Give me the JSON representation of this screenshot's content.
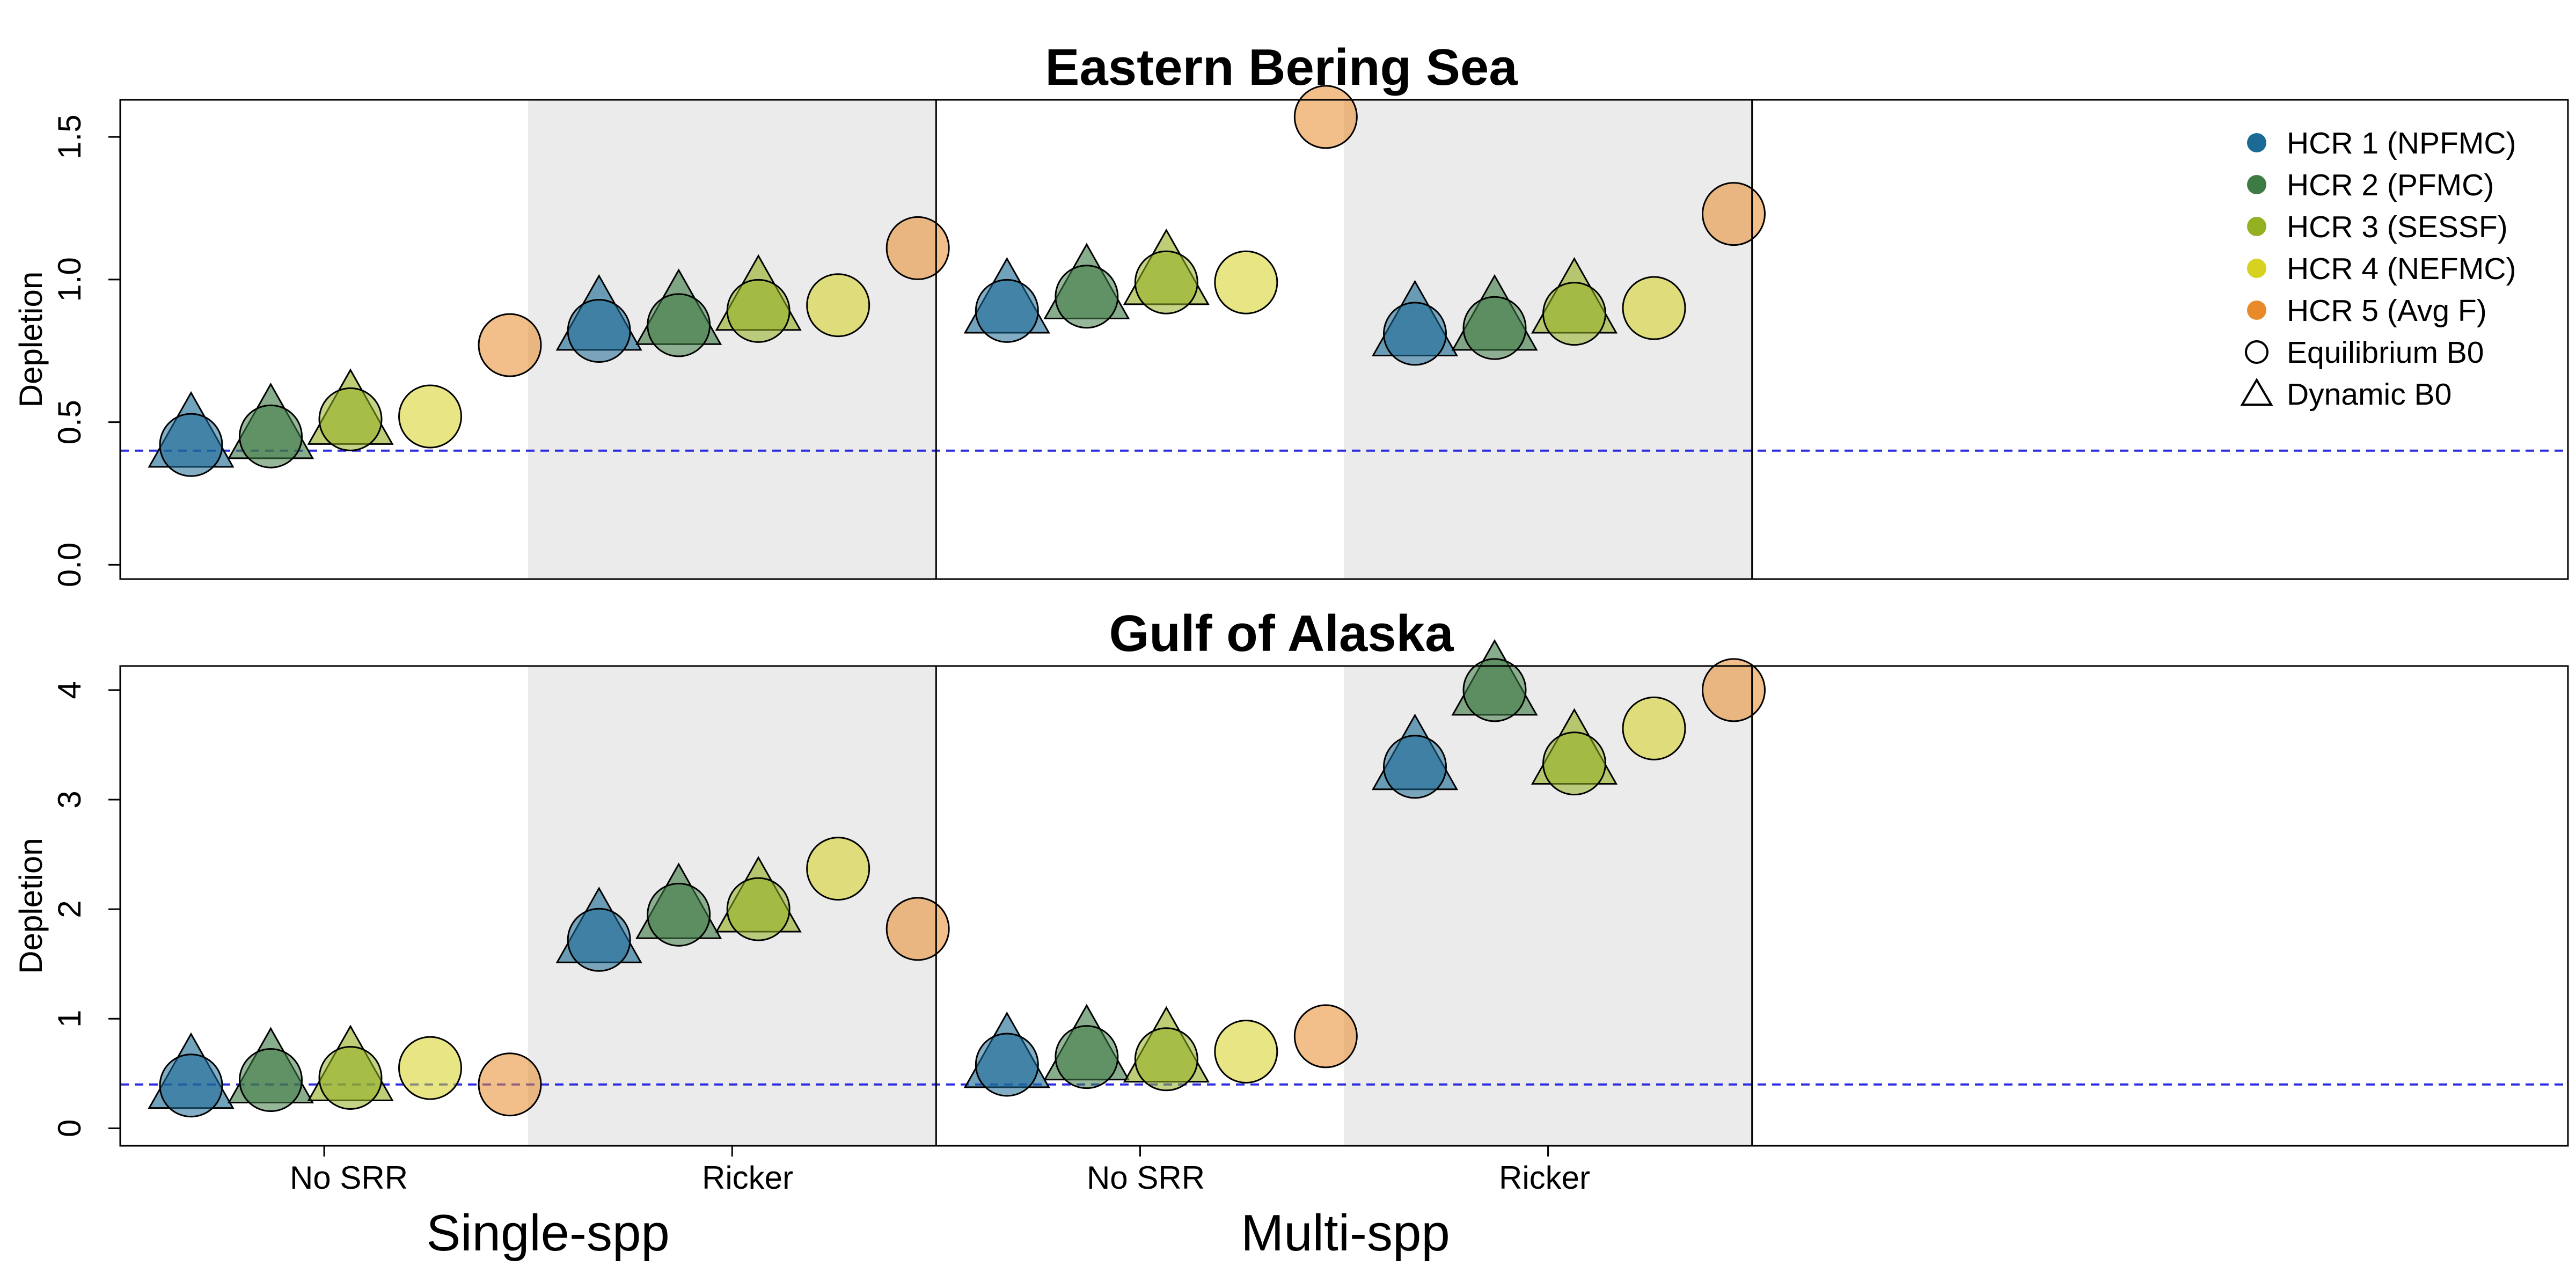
{
  "colors": {
    "hcr": [
      "#1B6A95",
      "#3F7B45",
      "#94B023",
      "#D6D21F",
      "#E88A2A"
    ],
    "reference_line": "#2B2BE0",
    "shade": "#EBEBEB"
  },
  "legend": {
    "entries": [
      {
        "label": "HCR 1 (NPFMC)",
        "marker": "filled-circle",
        "color_index": 0
      },
      {
        "label": "HCR 2 (PFMC)",
        "marker": "filled-circle",
        "color_index": 1
      },
      {
        "label": "HCR 3 (SESSF)",
        "marker": "filled-circle",
        "color_index": 2
      },
      {
        "label": "HCR 4 (NEFMC)",
        "marker": "filled-circle",
        "color_index": 3
      },
      {
        "label": "HCR 5 (Avg F)",
        "marker": "filled-circle",
        "color_index": 4
      },
      {
        "label": "Equilibrium B0",
        "marker": "open-circle"
      },
      {
        "label": "Dynamic B0",
        "marker": "open-triangle"
      }
    ],
    "placement": "top-right"
  },
  "x_axis": {
    "tick_labels": [
      "No SRR",
      "Ricker",
      "No SRR",
      "Ricker"
    ],
    "group_labels": [
      "Single-spp",
      "Multi-spp"
    ]
  },
  "chart_data": [
    {
      "type": "scatter",
      "title": "Eastern Bering Sea",
      "ylabel": "Depletion",
      "ylim": [
        -0.05,
        1.63
      ],
      "yticks": [
        "0.0",
        "0.5",
        "1.0",
        "1.5"
      ],
      "ytick_values": [
        0.0,
        0.5,
        1.0,
        1.5
      ],
      "reference_line": 0.4,
      "scenarios": [
        "Single-spp No SRR",
        "Single-spp Ricker",
        "Multi-spp No SRR",
        "Multi-spp Ricker"
      ],
      "equilibrium_b0": [
        [
          0.42,
          0.45,
          0.51,
          0.52,
          0.77
        ],
        [
          0.82,
          0.84,
          0.89,
          0.91,
          1.11
        ],
        [
          0.89,
          0.94,
          0.99,
          0.99,
          1.57
        ],
        [
          0.81,
          0.83,
          0.88,
          0.9,
          1.23
        ]
      ],
      "dynamic_b0": [
        [
          0.43,
          0.46,
          0.51,
          null,
          null
        ],
        [
          0.84,
          0.86,
          0.91,
          null,
          null
        ],
        [
          0.9,
          0.95,
          1.0,
          null,
          null
        ],
        [
          0.82,
          0.84,
          0.9,
          null,
          null
        ]
      ]
    },
    {
      "type": "scatter",
      "title": "Gulf of Alaska",
      "ylabel": "Depletion",
      "ylim": [
        -0.16,
        4.22
      ],
      "yticks": [
        "0",
        "1",
        "2",
        "3",
        "4"
      ],
      "ytick_values": [
        0,
        1,
        2,
        3,
        4
      ],
      "reference_line": 0.4,
      "scenarios": [
        "Single-spp No SRR",
        "Single-spp Ricker",
        "Multi-spp No SRR",
        "Multi-spp Ricker"
      ],
      "equilibrium_b0": [
        [
          0.39,
          0.44,
          0.46,
          0.55,
          0.4
        ],
        [
          1.72,
          1.95,
          2.0,
          2.37,
          1.82
        ],
        [
          0.58,
          0.65,
          0.63,
          0.7,
          0.84
        ],
        [
          3.3,
          4.0,
          3.33,
          3.65,
          4.0
        ]
      ],
      "dynamic_b0": [
        [
          0.41,
          0.46,
          0.48,
          null,
          null
        ],
        [
          1.74,
          1.96,
          2.02,
          null,
          null
        ],
        [
          0.6,
          0.67,
          0.65,
          null,
          null
        ],
        [
          3.32,
          4.0,
          3.37,
          null,
          null
        ]
      ]
    }
  ]
}
